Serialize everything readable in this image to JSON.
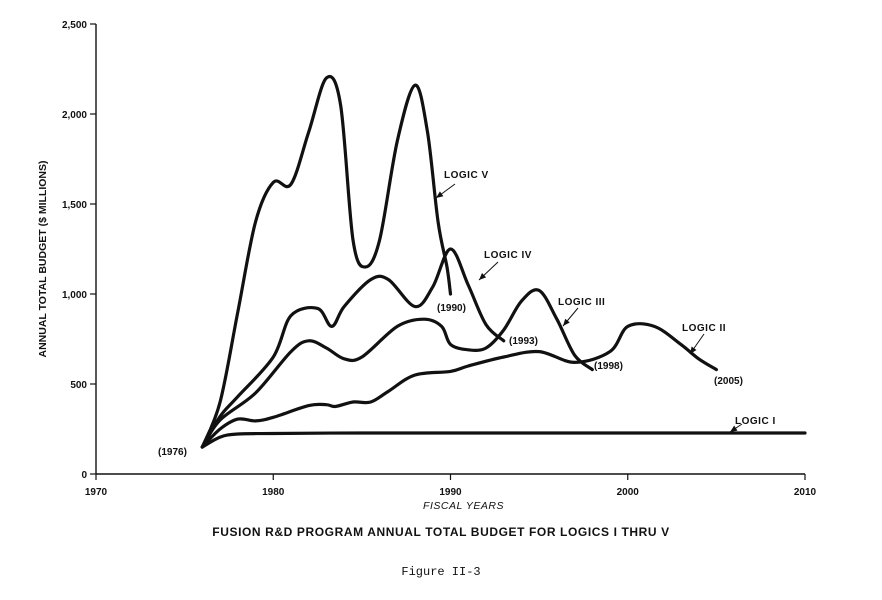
{
  "chart_data": {
    "type": "line",
    "title": "FUSION R&D PROGRAM ANNUAL TOTAL BUDGET FOR LOGICS I THRU V",
    "figure_label": "Figure II-3",
    "xlabel": "FISCAL YEARS",
    "ylabel": "ANNUAL TOTAL BUDGET ($ MILLIONS)",
    "xlim": [
      1970,
      2010
    ],
    "ylim": [
      0,
      2500
    ],
    "x_ticks": [
      1970,
      1980,
      1990,
      2000,
      2010
    ],
    "y_ticks": [
      0,
      500,
      1000,
      1500,
      2000,
      2500
    ],
    "x_tick_labels": [
      "1970",
      "1980",
      "1990",
      "2000",
      "2010"
    ],
    "y_tick_labels": [
      "0",
      "500",
      "1,000",
      "1,500",
      "2,000",
      "2,500"
    ],
    "grid": false,
    "annotations": [
      "(1976)",
      "(1990)",
      "(1993)",
      "(1998)",
      "(2005)"
    ],
    "series": [
      {
        "name": "LOGIC I",
        "points": [
          [
            1976,
            150
          ],
          [
            1977,
            205
          ],
          [
            1978,
            222
          ],
          [
            1980,
            225
          ],
          [
            1985,
            228
          ],
          [
            1990,
            228
          ],
          [
            1995,
            228
          ],
          [
            2000,
            228
          ],
          [
            2005,
            228
          ],
          [
            2010,
            228
          ]
        ]
      },
      {
        "name": "LOGIC II",
        "points": [
          [
            1976,
            150
          ],
          [
            1977,
            250
          ],
          [
            1978,
            305
          ],
          [
            1979,
            295
          ],
          [
            1980,
            315
          ],
          [
            1982,
            380
          ],
          [
            1983,
            385
          ],
          [
            1983.5,
            375
          ],
          [
            1984.5,
            400
          ],
          [
            1985.5,
            400
          ],
          [
            1986.5,
            460
          ],
          [
            1988,
            550
          ],
          [
            1990,
            570
          ],
          [
            1991,
            600
          ],
          [
            1993,
            650
          ],
          [
            1995,
            680
          ],
          [
            1997,
            620
          ],
          [
            1999,
            680
          ],
          [
            2000,
            820
          ],
          [
            2001.5,
            820
          ],
          [
            2003,
            720
          ],
          [
            2004,
            640
          ],
          [
            2005,
            580
          ]
        ]
      },
      {
        "name": "LOGIC III",
        "points": [
          [
            1976,
            150
          ],
          [
            1977,
            300
          ],
          [
            1979,
            450
          ],
          [
            1981,
            680
          ],
          [
            1982,
            740
          ],
          [
            1983,
            700
          ],
          [
            1984,
            640
          ],
          [
            1985,
            650
          ],
          [
            1987,
            820
          ],
          [
            1988.5,
            860
          ],
          [
            1989.5,
            820
          ],
          [
            1990,
            720
          ],
          [
            1991,
            690
          ],
          [
            1992,
            700
          ],
          [
            1993,
            800
          ],
          [
            1994,
            960
          ],
          [
            1995,
            1020
          ],
          [
            1996,
            860
          ],
          [
            1997,
            660
          ],
          [
            1998,
            580
          ]
        ]
      },
      {
        "name": "LOGIC IV",
        "points": [
          [
            1976,
            150
          ],
          [
            1977,
            320
          ],
          [
            1978,
            430
          ],
          [
            1980,
            650
          ],
          [
            1981,
            880
          ],
          [
            1982.5,
            920
          ],
          [
            1983.3,
            820
          ],
          [
            1984,
            930
          ],
          [
            1985.5,
            1080
          ],
          [
            1986.5,
            1080
          ],
          [
            1988,
            930
          ],
          [
            1989,
            1040
          ],
          [
            1990,
            1250
          ],
          [
            1991,
            1050
          ],
          [
            1992,
            830
          ],
          [
            1993,
            740
          ]
        ]
      },
      {
        "name": "LOGIC V",
        "points": [
          [
            1976,
            150
          ],
          [
            1977,
            400
          ],
          [
            1978,
            900
          ],
          [
            1979,
            1400
          ],
          [
            1980,
            1620
          ],
          [
            1981,
            1610
          ],
          [
            1982,
            1900
          ],
          [
            1983,
            2200
          ],
          [
            1983.8,
            2050
          ],
          [
            1984.5,
            1300
          ],
          [
            1985.2,
            1150
          ],
          [
            1986,
            1300
          ],
          [
            1987,
            1850
          ],
          [
            1988,
            2160
          ],
          [
            1988.7,
            1900
          ],
          [
            1989.3,
            1400
          ],
          [
            1989.8,
            1150
          ],
          [
            1990,
            1000
          ]
        ]
      }
    ]
  }
}
